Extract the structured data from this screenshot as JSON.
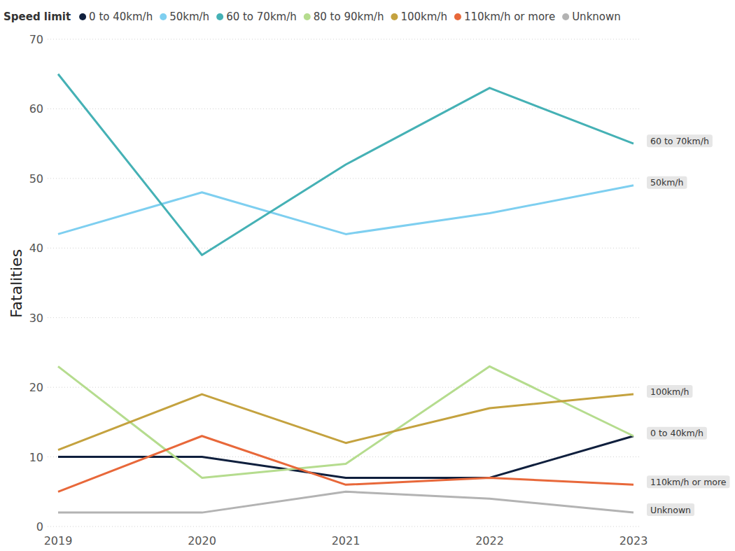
{
  "chart_data": {
    "type": "line",
    "legend_title": "Speed limit",
    "y_label": "Fatalities",
    "x": [
      2019,
      2020,
      2021,
      2022,
      2023
    ],
    "xlim": [
      2019,
      2023
    ],
    "xticks": [
      2019,
      2020,
      2021,
      2022,
      2023
    ],
    "ylim": [
      0,
      70
    ],
    "yticks": [
      0,
      10,
      20,
      30,
      40,
      50,
      60,
      70
    ],
    "grid": true,
    "legend": "top",
    "series": [
      {
        "name": "0 to 40km/h",
        "color": "#0f1f3d",
        "values": [
          10,
          10,
          7,
          7,
          13
        ]
      },
      {
        "name": "50km/h",
        "color": "#7ecff0",
        "values": [
          42,
          48,
          42,
          45,
          49
        ]
      },
      {
        "name": "60 to 70km/h",
        "color": "#45b1b5",
        "values": [
          65,
          39,
          52,
          63,
          55
        ]
      },
      {
        "name": "80 to 90km/h",
        "color": "#b5dc8e",
        "values": [
          23,
          7,
          9,
          23,
          13
        ]
      },
      {
        "name": "100km/h",
        "color": "#c4a23f",
        "values": [
          11,
          19,
          12,
          17,
          19
        ]
      },
      {
        "name": "110km/h or more",
        "color": "#e8683a",
        "values": [
          5,
          13,
          6,
          7,
          6
        ]
      },
      {
        "name": "Unknown",
        "color": "#b3b3b3",
        "values": [
          2,
          2,
          5,
          4,
          2
        ]
      }
    ]
  }
}
